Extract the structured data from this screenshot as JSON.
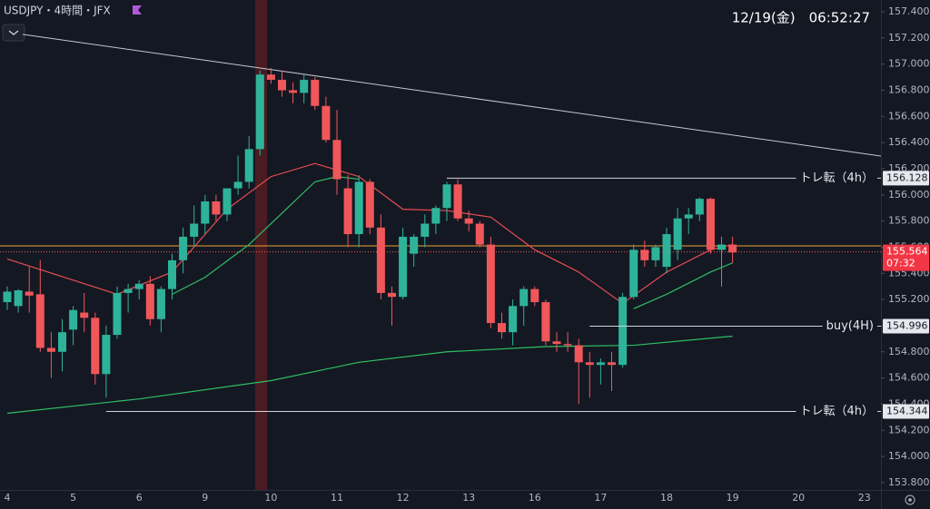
{
  "header": {
    "symbol": "USDJPY・4時間・JFX",
    "clock": "12/19(金)　06:52:27"
  },
  "chart_data": {
    "type": "candlestick",
    "categories": [
      "4",
      null,
      null,
      null,
      null,
      null,
      "5",
      null,
      null,
      null,
      null,
      null,
      "6",
      null,
      null,
      null,
      null,
      null,
      "9",
      null,
      null,
      null,
      null,
      null,
      "10",
      null,
      null,
      null,
      null,
      null,
      "11",
      null,
      null,
      null,
      null,
      null,
      "12",
      null,
      null,
      null,
      null,
      null,
      "13",
      null,
      null,
      null,
      null,
      null,
      "16",
      null,
      null,
      null,
      null,
      null,
      "17",
      null,
      null,
      null,
      null,
      null,
      "18",
      null,
      null,
      null,
      null,
      null,
      "19",
      null,
      null,
      null,
      null,
      null,
      "20",
      null,
      null,
      null,
      null,
      null,
      "23"
    ],
    "open": [
      155.18,
      155.15,
      155.26,
      155.24,
      154.83,
      154.8,
      154.97,
      155.1,
      155.06,
      154.63,
      154.93,
      155.25,
      155.28,
      155.32,
      155.05,
      155.28,
      155.5,
      155.68,
      155.78,
      155.95,
      155.85,
      156.05,
      156.1,
      156.35,
      156.92,
      156.88,
      156.8,
      156.78,
      156.88,
      156.68,
      156.42,
      156.05,
      155.7,
      156.1,
      155.75,
      155.25,
      155.22,
      155.55,
      155.68,
      155.78,
      155.9,
      156.08,
      155.82,
      155.78,
      155.62,
      155.02,
      154.95,
      155.15,
      155.28,
      155.18,
      154.88,
      154.86,
      154.85,
      154.72,
      154.7,
      154.72,
      154.7,
      155.22,
      155.58,
      155.5,
      155.45,
      155.58,
      155.82,
      155.85,
      155.97,
      155.58,
      155.62,
      null,
      null,
      null,
      null,
      null,
      null,
      null,
      null,
      null,
      null,
      null,
      null
    ],
    "high": [
      155.3,
      155.28,
      155.45,
      155.5,
      154.95,
      155.05,
      155.15,
      155.25,
      155.1,
      155.0,
      155.3,
      155.32,
      155.35,
      155.38,
      155.3,
      155.55,
      155.75,
      155.92,
      156.0,
      156.0,
      156.05,
      156.3,
      156.45,
      156.95,
      156.97,
      156.95,
      156.86,
      156.92,
      156.9,
      156.75,
      156.65,
      156.15,
      156.15,
      156.12,
      155.85,
      155.3,
      155.75,
      155.7,
      155.85,
      155.92,
      156.1,
      156.12,
      155.88,
      155.8,
      155.68,
      155.1,
      155.2,
      155.3,
      155.3,
      155.2,
      154.95,
      154.95,
      154.9,
      154.8,
      154.75,
      154.8,
      155.25,
      155.62,
      155.65,
      155.62,
      155.75,
      155.9,
      155.9,
      155.98,
      155.98,
      155.68,
      155.68,
      null,
      null,
      null,
      null,
      null,
      null,
      null,
      null,
      null,
      null,
      null,
      null
    ],
    "low": [
      155.12,
      155.1,
      155.1,
      154.8,
      154.6,
      154.65,
      154.85,
      154.95,
      154.55,
      154.45,
      154.9,
      155.1,
      155.2,
      155.0,
      154.95,
      155.2,
      155.4,
      155.6,
      155.7,
      155.8,
      155.8,
      156.0,
      156.05,
      156.3,
      156.85,
      156.75,
      156.7,
      156.7,
      156.65,
      156.4,
      156.0,
      155.6,
      155.6,
      155.7,
      155.2,
      155.0,
      155.2,
      155.45,
      155.6,
      155.7,
      155.8,
      155.8,
      155.72,
      155.6,
      154.98,
      154.9,
      154.85,
      155.0,
      155.15,
      154.85,
      154.8,
      154.8,
      154.4,
      154.45,
      154.55,
      154.5,
      154.68,
      155.2,
      155.45,
      155.45,
      155.4,
      155.5,
      155.7,
      155.8,
      155.55,
      155.3,
      155.48,
      null,
      null,
      null,
      null,
      null,
      null,
      null,
      null,
      null,
      null,
      null,
      null
    ],
    "close": [
      155.26,
      155.27,
      155.23,
      154.83,
      154.8,
      154.95,
      155.12,
      155.06,
      154.63,
      154.93,
      155.25,
      155.28,
      155.32,
      155.05,
      155.28,
      155.5,
      155.68,
      155.78,
      155.95,
      155.85,
      156.05,
      156.1,
      156.35,
      156.92,
      156.88,
      156.8,
      156.78,
      156.88,
      156.68,
      156.42,
      156.12,
      155.7,
      156.1,
      155.75,
      155.25,
      155.22,
      155.68,
      155.68,
      155.78,
      155.9,
      156.08,
      155.82,
      155.78,
      155.62,
      155.02,
      154.95,
      155.15,
      155.28,
      155.18,
      154.88,
      154.86,
      154.85,
      154.72,
      154.7,
      154.72,
      154.7,
      155.22,
      155.58,
      155.5,
      155.6,
      155.7,
      155.82,
      155.85,
      155.97,
      155.58,
      155.62,
      155.56,
      null,
      null,
      null,
      null,
      null,
      null,
      null,
      null,
      null,
      null,
      null,
      null
    ],
    "up_color": "#2eb39a",
    "down_color": "#f0575a",
    "series": [
      {
        "color": "#e84d4f",
        "x": [
          0,
          10,
          15,
          20,
          24,
          28,
          32,
          36,
          40,
          44,
          48,
          52,
          56,
          60,
          64,
          66
        ],
        "values": [
          155.51,
          155.24,
          155.41,
          155.89,
          156.14,
          156.24,
          156.14,
          155.89,
          155.88,
          155.83,
          155.58,
          155.41,
          155.17,
          155.41,
          155.58,
          155.62
        ]
      },
      {
        "color": "#2fbf63",
        "x": [
          15,
          18,
          22,
          25,
          28,
          30,
          32
        ],
        "values": [
          155.24,
          155.37,
          155.62,
          155.86,
          156.1,
          156.14,
          156.12
        ]
      },
      {
        "color": "#2fbf63",
        "x": [
          57,
          60,
          64,
          66
        ],
        "values": [
          155.13,
          155.24,
          155.41,
          155.48
        ]
      },
      {
        "color": "#2fbf63",
        "x": [
          0,
          12,
          24,
          32,
          40,
          49,
          57,
          66
        ],
        "values": [
          154.33,
          154.44,
          154.58,
          154.72,
          154.8,
          154.84,
          154.85,
          154.92
        ]
      }
    ],
    "trendline": {
      "x": [
        1.4,
        79.5
      ],
      "values": [
        157.227,
        156.297
      ]
    },
    "levels": [
      {
        "label": "トレ転（4h）",
        "value": 156.128,
        "value_label": "156.128",
        "from": 40
      },
      {
        "label": "buy(4H)",
        "value": 154.996,
        "value_label": "154.996",
        "from": 53
      },
      {
        "label": "トレ転（4h）",
        "value": 154.344,
        "value_label": "154.344",
        "from": 9
      }
    ],
    "price_line": 155.61,
    "current": {
      "value": 155.564,
      "value_label": "155.564",
      "countdown": "07:32"
    },
    "ylim": [
      153.744,
      157.49
    ],
    "yticks": [
      {
        "value": 153.8,
        "label": "153.800"
      },
      {
        "value": 154.0,
        "label": "154.000"
      },
      {
        "value": 154.2,
        "label": "154.200"
      },
      {
        "value": 154.4,
        "label": "154.400"
      },
      {
        "value": 154.6,
        "label": "154.600"
      },
      {
        "value": 154.8,
        "label": "154.800"
      },
      {
        "value": 155.0,
        "label": "155.000"
      },
      {
        "value": 155.2,
        "label": "155.200"
      },
      {
        "value": 155.4,
        "label": "155.400"
      },
      {
        "value": 155.6,
        "label": "155.600"
      },
      {
        "value": 155.8,
        "label": "155.800"
      },
      {
        "value": 156.0,
        "label": "156.000"
      },
      {
        "value": 156.2,
        "label": "156.200"
      },
      {
        "value": 156.4,
        "label": "156.400"
      },
      {
        "value": 156.6,
        "label": "156.600"
      },
      {
        "value": 156.8,
        "label": "156.800"
      },
      {
        "value": 157.0,
        "label": "157.000"
      },
      {
        "value": 157.2,
        "label": "157.200"
      },
      {
        "value": 157.4,
        "label": "157.400"
      }
    ]
  }
}
